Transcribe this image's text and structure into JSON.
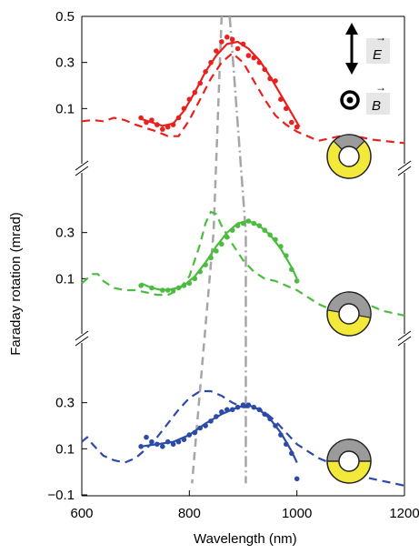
{
  "chart_data": {
    "type": "line",
    "xlabel": "Wavelength (nm)",
    "ylabel": "Faraday rotation (mrad)",
    "xlim": [
      600,
      1200
    ],
    "x_ticks": [
      600,
      800,
      1000,
      1200
    ],
    "legend": {
      "e_symbol": "E",
      "b_symbol": "B",
      "arrow_mark": "→",
      "e_icon": "double-arrow-icon",
      "b_icon": "circle-dot-icon"
    },
    "panels": [
      {
        "name": "top",
        "y_ticks": [
          0.5,
          0.3,
          0.1
        ],
        "ylim": [
          -0.1,
          0.5
        ],
        "color": "#e8211e",
        "icon": "ring-top-gray-segment-icon",
        "markers": [
          [
            710,
            0.06
          ],
          [
            720,
            0.04
          ],
          [
            730,
            0.05
          ],
          [
            740,
            0.03
          ],
          [
            750,
            0.01
          ],
          [
            760,
            0.02
          ],
          [
            770,
            0.03
          ],
          [
            780,
            0.06
          ],
          [
            790,
            0.1
          ],
          [
            800,
            0.14
          ],
          [
            810,
            0.17
          ],
          [
            820,
            0.21
          ],
          [
            830,
            0.26
          ],
          [
            840,
            0.3
          ],
          [
            850,
            0.35
          ],
          [
            860,
            0.39
          ],
          [
            870,
            0.41
          ],
          [
            880,
            0.4
          ],
          [
            890,
            0.36
          ],
          [
            900,
            0.38
          ],
          [
            910,
            0.33
          ],
          [
            920,
            0.32
          ],
          [
            930,
            0.3
          ],
          [
            940,
            0.27
          ],
          [
            950,
            0.23
          ],
          [
            960,
            0.22
          ],
          [
            970,
            0.14
          ],
          [
            980,
            0.1
          ],
          [
            990,
            0.04
          ],
          [
            1000,
            0.02
          ]
        ],
        "fit": [
          [
            710,
            0.055
          ],
          [
            730,
            0.04
          ],
          [
            750,
            0.025
          ],
          [
            770,
            0.035
          ],
          [
            790,
            0.09
          ],
          [
            810,
            0.17
          ],
          [
            830,
            0.26
          ],
          [
            850,
            0.33
          ],
          [
            870,
            0.38
          ],
          [
            890,
            0.39
          ],
          [
            910,
            0.36
          ],
          [
            930,
            0.31
          ],
          [
            950,
            0.24
          ],
          [
            970,
            0.16
          ],
          [
            990,
            0.08
          ],
          [
            1005,
            0.02
          ]
        ],
        "model": [
          [
            600,
            0.045
          ],
          [
            620,
            0.05
          ],
          [
            640,
            0.045
          ],
          [
            660,
            0.06
          ],
          [
            680,
            0.05
          ],
          [
            700,
            0.03
          ],
          [
            720,
            0.015
          ],
          [
            740,
            0.0
          ],
          [
            760,
            -0.02
          ],
          [
            780,
            -0.02
          ],
          [
            800,
            0.05
          ],
          [
            820,
            0.14
          ],
          [
            840,
            0.23
          ],
          [
            860,
            0.3
          ],
          [
            880,
            0.34
          ],
          [
            900,
            0.3
          ],
          [
            920,
            0.22
          ],
          [
            940,
            0.14
          ],
          [
            960,
            0.07
          ],
          [
            980,
            0.03
          ],
          [
            1000,
            0.0
          ],
          [
            1020,
            -0.02
          ],
          [
            1040,
            -0.04
          ],
          [
            1060,
            -0.03
          ],
          [
            1080,
            -0.02
          ],
          [
            1100,
            -0.02
          ],
          [
            1120,
            -0.025
          ],
          [
            1140,
            -0.035
          ],
          [
            1160,
            -0.04
          ],
          [
            1180,
            -0.045
          ],
          [
            1200,
            -0.05
          ]
        ]
      },
      {
        "name": "middle",
        "y_ticks": [
          0.3,
          0.1
        ],
        "ylim": [
          -0.1,
          0.5
        ],
        "color": "#4cbc40",
        "icon": "ring-right-gray-segment-icon",
        "markers": [
          [
            710,
            0.07
          ],
          [
            730,
            0.06
          ],
          [
            750,
            0.05
          ],
          [
            760,
            0.05
          ],
          [
            770,
            0.05
          ],
          [
            780,
            0.06
          ],
          [
            790,
            0.07
          ],
          [
            800,
            0.08
          ],
          [
            810,
            0.1
          ],
          [
            820,
            0.13
          ],
          [
            830,
            0.16
          ],
          [
            840,
            0.19
          ],
          [
            850,
            0.22
          ],
          [
            860,
            0.25
          ],
          [
            870,
            0.28
          ],
          [
            880,
            0.31
          ],
          [
            890,
            0.33
          ],
          [
            900,
            0.34
          ],
          [
            910,
            0.35
          ],
          [
            920,
            0.34
          ],
          [
            930,
            0.33
          ],
          [
            940,
            0.31
          ],
          [
            950,
            0.29
          ],
          [
            960,
            0.27
          ],
          [
            970,
            0.24
          ],
          [
            980,
            0.2
          ],
          [
            990,
            0.14
          ],
          [
            1000,
            0.09
          ]
        ],
        "fit": [
          [
            710,
            0.08
          ],
          [
            730,
            0.06
          ],
          [
            750,
            0.05
          ],
          [
            770,
            0.055
          ],
          [
            790,
            0.07
          ],
          [
            810,
            0.11
          ],
          [
            830,
            0.17
          ],
          [
            850,
            0.24
          ],
          [
            870,
            0.3
          ],
          [
            890,
            0.34
          ],
          [
            910,
            0.35
          ],
          [
            930,
            0.33
          ],
          [
            950,
            0.29
          ],
          [
            970,
            0.23
          ],
          [
            990,
            0.15
          ],
          [
            1000,
            0.1
          ]
        ],
        "model": [
          [
            600,
            0.08
          ],
          [
            610,
            0.1
          ],
          [
            620,
            0.12
          ],
          [
            630,
            0.12
          ],
          [
            640,
            0.09
          ],
          [
            660,
            0.06
          ],
          [
            680,
            0.05
          ],
          [
            700,
            0.05
          ],
          [
            720,
            0.04
          ],
          [
            740,
            0.03
          ],
          [
            760,
            0.03
          ],
          [
            780,
            0.05
          ],
          [
            800,
            0.11
          ],
          [
            820,
            0.25
          ],
          [
            830,
            0.34
          ],
          [
            840,
            0.39
          ],
          [
            850,
            0.38
          ],
          [
            860,
            0.33
          ],
          [
            880,
            0.25
          ],
          [
            900,
            0.18
          ],
          [
            920,
            0.13
          ],
          [
            940,
            0.1
          ],
          [
            960,
            0.09
          ],
          [
            980,
            0.07
          ],
          [
            1000,
            0.05
          ],
          [
            1020,
            0.02
          ],
          [
            1040,
            -0.01
          ],
          [
            1060,
            -0.03
          ],
          [
            1080,
            -0.04
          ],
          [
            1100,
            -0.03
          ],
          [
            1120,
            -0.02
          ],
          [
            1140,
            -0.02
          ],
          [
            1160,
            -0.04
          ],
          [
            1180,
            -0.05
          ],
          [
            1200,
            -0.06
          ]
        ]
      },
      {
        "name": "bottom",
        "y_ticks": [
          0.3,
          0.1,
          -0.1
        ],
        "ylim": [
          -0.1,
          0.5
        ],
        "color": "#2c4aa8",
        "icon": "ring-bottom-yellow-half-icon",
        "markers": [
          [
            710,
            0.11
          ],
          [
            720,
            0.15
          ],
          [
            730,
            0.13
          ],
          [
            740,
            0.12
          ],
          [
            750,
            0.11
          ],
          [
            760,
            0.13
          ],
          [
            770,
            0.12
          ],
          [
            780,
            0.13
          ],
          [
            790,
            0.14
          ],
          [
            800,
            0.16
          ],
          [
            810,
            0.17
          ],
          [
            820,
            0.19
          ],
          [
            830,
            0.2
          ],
          [
            840,
            0.22
          ],
          [
            850,
            0.24
          ],
          [
            860,
            0.26
          ],
          [
            870,
            0.27
          ],
          [
            880,
            0.27
          ],
          [
            890,
            0.28
          ],
          [
            900,
            0.29
          ],
          [
            910,
            0.29
          ],
          [
            920,
            0.28
          ],
          [
            930,
            0.27
          ],
          [
            940,
            0.25
          ],
          [
            950,
            0.23
          ],
          [
            960,
            0.2
          ],
          [
            970,
            0.16
          ],
          [
            980,
            0.12
          ],
          [
            990,
            0.08
          ],
          [
            1000,
            -0.03
          ]
        ],
        "fit": [
          [
            710,
            0.11
          ],
          [
            740,
            0.12
          ],
          [
            770,
            0.13
          ],
          [
            800,
            0.16
          ],
          [
            830,
            0.21
          ],
          [
            860,
            0.25
          ],
          [
            890,
            0.28
          ],
          [
            910,
            0.29
          ],
          [
            930,
            0.27
          ],
          [
            950,
            0.23
          ],
          [
            970,
            0.17
          ],
          [
            990,
            0.09
          ],
          [
            1000,
            0.04
          ]
        ],
        "model": [
          [
            600,
            0.13
          ],
          [
            610,
            0.15
          ],
          [
            620,
            0.12
          ],
          [
            640,
            0.07
          ],
          [
            660,
            0.05
          ],
          [
            680,
            0.04
          ],
          [
            700,
            0.06
          ],
          [
            720,
            0.1
          ],
          [
            740,
            0.15
          ],
          [
            760,
            0.21
          ],
          [
            780,
            0.27
          ],
          [
            800,
            0.32
          ],
          [
            820,
            0.35
          ],
          [
            840,
            0.35
          ],
          [
            860,
            0.33
          ],
          [
            880,
            0.3
          ],
          [
            900,
            0.28
          ],
          [
            920,
            0.28
          ],
          [
            940,
            0.26
          ],
          [
            960,
            0.22
          ],
          [
            980,
            0.17
          ],
          [
            1000,
            0.12
          ],
          [
            1020,
            0.09
          ],
          [
            1040,
            0.06
          ],
          [
            1060,
            0.04
          ],
          [
            1080,
            0.02
          ],
          [
            1100,
            0.0
          ],
          [
            1120,
            -0.02
          ],
          [
            1140,
            -0.03
          ],
          [
            1160,
            -0.04
          ],
          [
            1180,
            -0.05
          ],
          [
            1200,
            -0.06
          ]
        ]
      }
    ],
    "guide_lines": [
      {
        "name": "dashed-guide",
        "style": "dashed",
        "points": [
          [
            860,
            0.5,
            "top"
          ],
          [
            845,
            0.3,
            "middle"
          ],
          [
            805,
            -0.05,
            "bottom"
          ]
        ]
      },
      {
        "name": "dash-dot-guide",
        "style": "dashdot",
        "points": [
          [
            875,
            0.5,
            "top"
          ],
          [
            905,
            0.3,
            "middle"
          ],
          [
            905,
            -0.05,
            "bottom"
          ]
        ]
      }
    ]
  }
}
